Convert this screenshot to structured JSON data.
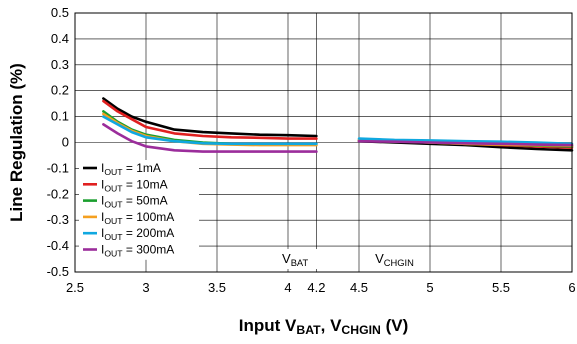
{
  "chart_data": {
    "type": "line",
    "xlabel_parts": [
      "Input V",
      "BAT",
      ", V",
      "CHGIN",
      " (V)"
    ],
    "ylabel": "Line Regulation (%)",
    "xlim": [
      2.5,
      6.0
    ],
    "ylim": [
      -0.5,
      0.5
    ],
    "x_ticks": [
      2.5,
      3,
      3.5,
      4,
      4.2,
      4.5,
      5,
      5.5,
      6
    ],
    "x_tick_labels": [
      "2.5",
      "3",
      "3.5",
      "4",
      "4.2",
      "4.5",
      "5",
      "5.5",
      "6"
    ],
    "y_ticks": [
      0.5,
      0.4,
      0.3,
      0.2,
      0.1,
      0,
      -0.1,
      -0.2,
      -0.3,
      -0.4,
      -0.5
    ],
    "y_tick_labels": [
      "0.5",
      "0.4",
      "0.3",
      "0.2",
      "0.1",
      "0",
      "-0.1",
      "-0.2",
      "-0.3",
      "-0.4",
      "-0.5"
    ],
    "grid": true,
    "legend_position": "lower-left",
    "regions": [
      {
        "label_main": "V",
        "label_sub": "BAT",
        "x": 4.05
      },
      {
        "label_main": "V",
        "label_sub": "CHGIN",
        "x": 4.75
      }
    ],
    "series": [
      {
        "name_main": "I",
        "name_sub": "OUT",
        "name_rest": " = 1mA",
        "color": "#000000",
        "segments": [
          {
            "x": [
              2.7,
              2.8,
              2.9,
              3.0,
              3.2,
              3.4,
              3.6,
              3.8,
              4.0,
              4.2
            ],
            "y": [
              0.17,
              0.13,
              0.1,
              0.08,
              0.05,
              0.04,
              0.035,
              0.03,
              0.028,
              0.025
            ]
          },
          {
            "x": [
              4.5,
              4.75,
              5.0,
              5.25,
              5.5,
              5.75,
              6.0
            ],
            "y": [
              0.005,
              0.0,
              -0.005,
              -0.01,
              -0.018,
              -0.025,
              -0.03
            ]
          }
        ]
      },
      {
        "name_main": "I",
        "name_sub": "OUT",
        "name_rest": " = 10mA",
        "color": "#e02020",
        "segments": [
          {
            "x": [
              2.7,
              2.8,
              2.9,
              3.0,
              3.2,
              3.4,
              3.6,
              3.8,
              4.0,
              4.2
            ],
            "y": [
              0.16,
              0.12,
              0.09,
              0.06,
              0.035,
              0.025,
              0.02,
              0.018,
              0.015,
              0.015
            ]
          },
          {
            "x": [
              4.5,
              4.75,
              5.0,
              5.25,
              5.5,
              5.75,
              6.0
            ],
            "y": [
              0.008,
              0.005,
              0.0,
              -0.005,
              -0.01,
              -0.015,
              -0.02
            ]
          }
        ]
      },
      {
        "name_main": "I",
        "name_sub": "OUT",
        "name_rest": " = 50mA",
        "color": "#1a9e2e",
        "segments": [
          {
            "x": [
              2.7,
              2.8,
              2.9,
              3.0,
              3.2,
              3.4,
              3.6,
              3.8,
              4.0,
              4.2
            ],
            "y": [
              0.12,
              0.08,
              0.05,
              0.03,
              0.01,
              0.0,
              -0.005,
              -0.005,
              -0.005,
              -0.005
            ]
          },
          {
            "x": [
              4.5,
              4.75,
              5.0,
              5.25,
              5.5,
              5.75,
              6.0
            ],
            "y": [
              0.01,
              0.005,
              0.0,
              -0.005,
              -0.008,
              -0.012,
              -0.015
            ]
          }
        ]
      },
      {
        "name_main": "I",
        "name_sub": "OUT",
        "name_rest": " = 100mA",
        "color": "#f5a020",
        "segments": [
          {
            "x": [
              2.7,
              2.8,
              2.9,
              3.0,
              3.2,
              3.4,
              3.6,
              3.8,
              4.0,
              4.2
            ],
            "y": [
              0.11,
              0.075,
              0.045,
              0.025,
              0.005,
              -0.005,
              -0.008,
              -0.01,
              -0.01,
              -0.01
            ]
          },
          {
            "x": [
              4.5,
              4.75,
              5.0,
              5.25,
              5.5,
              5.75,
              6.0
            ],
            "y": [
              0.008,
              0.005,
              0.0,
              -0.005,
              -0.008,
              -0.01,
              -0.012
            ]
          }
        ]
      },
      {
        "name_main": "I",
        "name_sub": "OUT",
        "name_rest": " = 200mA",
        "color": "#10a8e0",
        "segments": [
          {
            "x": [
              2.7,
              2.8,
              2.9,
              3.0,
              3.2,
              3.4,
              3.6,
              3.8,
              4.0,
              4.2
            ],
            "y": [
              0.1,
              0.07,
              0.04,
              0.02,
              0.005,
              -0.003,
              -0.005,
              -0.005,
              -0.005,
              -0.005
            ]
          },
          {
            "x": [
              4.5,
              4.75,
              5.0,
              5.25,
              5.5,
              5.75,
              6.0
            ],
            "y": [
              0.015,
              0.01,
              0.008,
              0.005,
              0.003,
              0.0,
              -0.005
            ]
          }
        ]
      },
      {
        "name_main": "I",
        "name_sub": "OUT",
        "name_rest": " = 300mA",
        "color": "#9b2d9b",
        "segments": [
          {
            "x": [
              2.7,
              2.8,
              2.9,
              3.0,
              3.2,
              3.4,
              3.6,
              3.8,
              4.0,
              4.2
            ],
            "y": [
              0.07,
              0.035,
              0.005,
              -0.015,
              -0.03,
              -0.035,
              -0.035,
              -0.035,
              -0.035,
              -0.035
            ]
          },
          {
            "x": [
              4.5,
              4.75,
              5.0,
              5.25,
              5.5,
              5.75,
              6.0
            ],
            "y": [
              0.005,
              0.003,
              0.0,
              -0.003,
              -0.005,
              -0.008,
              -0.01
            ]
          }
        ]
      }
    ]
  }
}
